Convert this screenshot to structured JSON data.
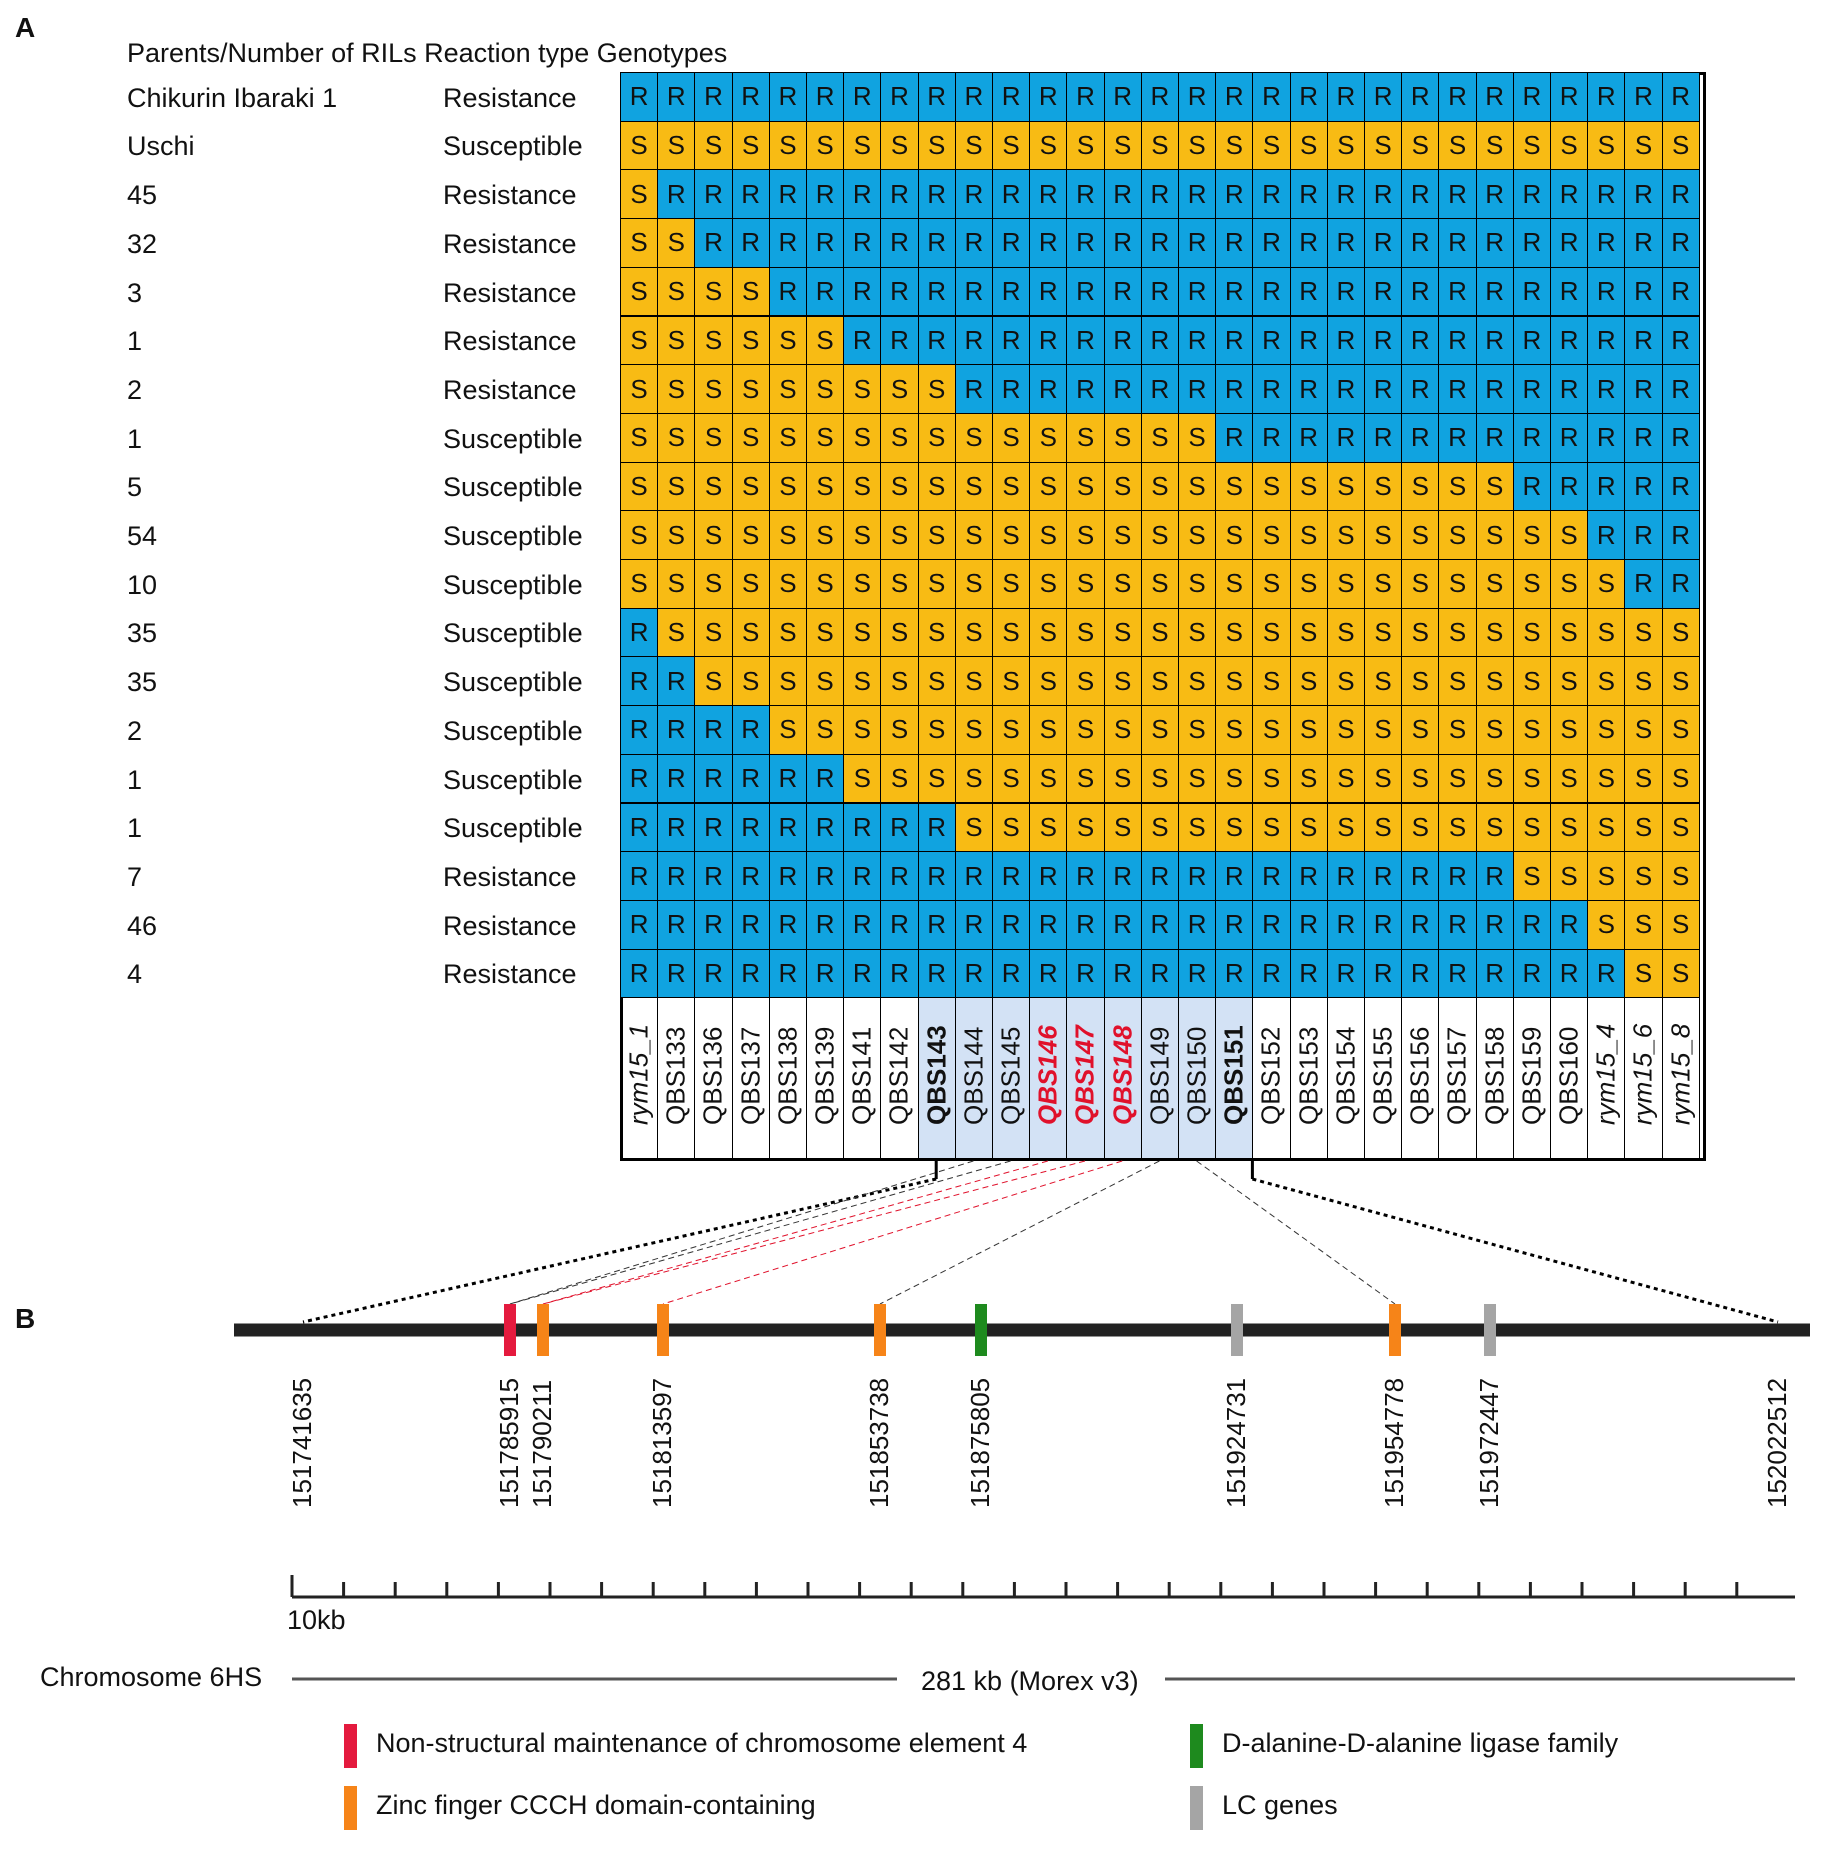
{
  "panel_a": {
    "letter": "A",
    "header": "Parents/Number of RILs Reaction type Genotypes",
    "markers": [
      {
        "name": "rym15_1",
        "style": "ital",
        "hl": false
      },
      {
        "name": "QBS133",
        "style": "",
        "hl": false
      },
      {
        "name": "QBS136",
        "style": "",
        "hl": false
      },
      {
        "name": "QBS137",
        "style": "",
        "hl": false
      },
      {
        "name": "QBS138",
        "style": "",
        "hl": false
      },
      {
        "name": "QBS139",
        "style": "",
        "hl": false
      },
      {
        "name": "QBS141",
        "style": "",
        "hl": false
      },
      {
        "name": "QBS142",
        "style": "",
        "hl": false
      },
      {
        "name": "QBS143",
        "style": "bold",
        "hl": true
      },
      {
        "name": "QBS144",
        "style": "",
        "hl": true
      },
      {
        "name": "QBS145",
        "style": "",
        "hl": true
      },
      {
        "name": "QBS146",
        "style": "red",
        "hl": true
      },
      {
        "name": "QBS147",
        "style": "red",
        "hl": true
      },
      {
        "name": "QBS148",
        "style": "red",
        "hl": true
      },
      {
        "name": "QBS149",
        "style": "",
        "hl": true
      },
      {
        "name": "QBS150",
        "style": "",
        "hl": true
      },
      {
        "name": "QBS151",
        "style": "bold",
        "hl": true
      },
      {
        "name": "QBS152",
        "style": "",
        "hl": false
      },
      {
        "name": "QBS153",
        "style": "",
        "hl": false
      },
      {
        "name": "QBS154",
        "style": "",
        "hl": false
      },
      {
        "name": "QBS155",
        "style": "",
        "hl": false
      },
      {
        "name": "QBS156",
        "style": "",
        "hl": false
      },
      {
        "name": "QBS157",
        "style": "",
        "hl": false
      },
      {
        "name": "QBS158",
        "style": "",
        "hl": false
      },
      {
        "name": "QBS159",
        "style": "",
        "hl": false
      },
      {
        "name": "QBS160",
        "style": "",
        "hl": false
      },
      {
        "name": "rym15_4",
        "style": "ital",
        "hl": false
      },
      {
        "name": "rym15_6",
        "style": "ital",
        "hl": false
      },
      {
        "name": "rym15_8",
        "style": "ital",
        "hl": false
      }
    ],
    "rows": [
      {
        "label": "Chikurin Ibaraki 1",
        "reaction": "Resistance",
        "genotypes": "RRRRRRRRRRRRRRRRRRRRRRRRRRRRR"
      },
      {
        "label": "Uschi",
        "reaction": "Susceptible",
        "genotypes": "SSSSSSSSSSSSSSSSSSSSSSSSSSSSS"
      },
      {
        "label": "45",
        "reaction": "Resistance",
        "genotypes": "SRRRRRRRRRRRRRRRRRRRRRRRRRRRR"
      },
      {
        "label": "32",
        "reaction": "Resistance",
        "genotypes": "SSRRRRRRRRRRRRRRRRRRRRRRRRRRR"
      },
      {
        "label": "3",
        "reaction": "Resistance",
        "genotypes": "SSSSRRRRRRRRRRRRRRRRRRRRRRRRR"
      },
      {
        "label": "1",
        "reaction": "Resistance",
        "genotypes": "SSSSSSRRRRRRRRRRRRRRRRRRRRRRR"
      },
      {
        "label": "2",
        "reaction": "Resistance",
        "genotypes": "SSSSSSSSSRRRRRRRRRRRRRRRRRRRR"
      },
      {
        "label": "1",
        "reaction": "Susceptible",
        "genotypes": "SSSSSSSSSSSSSSSSRRRRRRRRRRRRR"
      },
      {
        "label": "5",
        "reaction": "Susceptible",
        "genotypes": "SSSSSSSSSSSSSSSSSSSSSSSSRRRRR"
      },
      {
        "label": "54",
        "reaction": "Susceptible",
        "genotypes": "SSSSSSSSSSSSSSSSSSSSSSSSSSRRR"
      },
      {
        "label": "10",
        "reaction": "Susceptible",
        "genotypes": "SSSSSSSSSSSSSSSSSSSSSSSSSSSRR"
      },
      {
        "label": "35",
        "reaction": "Susceptible",
        "genotypes": "RSSSSSSSSSSSSSSSSSSSSSSSSSSSS"
      },
      {
        "label": "35",
        "reaction": "Susceptible",
        "genotypes": "RRSSSSSSSSSSSSSSSSSSSSSSSSSSS"
      },
      {
        "label": "2",
        "reaction": "Susceptible",
        "genotypes": "RRRRSSSSSSSSSSSSSSSSSSSSSSSSS"
      },
      {
        "label": "1",
        "reaction": "Susceptible",
        "genotypes": "RRRRRRSSSSSSSSSSSSSSSSSSSSSSS"
      },
      {
        "label": "1",
        "reaction": "Susceptible",
        "genotypes": "RRRRRRRRRSSSSSSSSSSSSSSSSSSSS"
      },
      {
        "label": "7",
        "reaction": "Resistance",
        "genotypes": "RRRRRRRRRRRRRRRRRRRRRRRRSSSSS"
      },
      {
        "label": "46",
        "reaction": "Resistance",
        "genotypes": "RRRRRRRRRRRRRRRRRRRRRRRRRRSSS"
      },
      {
        "label": "4",
        "reaction": "Resistance",
        "genotypes": "RRRRRRRRRRRRRRRRRRRRRRRRRRRSS"
      }
    ]
  },
  "panel_b": {
    "letter": "B",
    "positions": [
      {
        "label": "151741635",
        "color": "none"
      },
      {
        "label": "151785915",
        "color": "#e41a3e"
      },
      {
        "label": "151790211",
        "color": "#f68418"
      },
      {
        "label": "151813597",
        "color": "#f68418"
      },
      {
        "label": "151853738",
        "color": "#f68418"
      },
      {
        "label": "151875805",
        "color": "#1e8a1e"
      },
      {
        "label": "151924731",
        "color": "#a5a5a5"
      },
      {
        "label": "151954778",
        "color": "#f68418"
      },
      {
        "label": "151972447",
        "color": "#a5a5a5"
      },
      {
        "label": "152022512",
        "color": "none"
      }
    ],
    "scale_label": "10kb",
    "chromosome_label": "Chromosome 6HS",
    "span_label": "281 kb (Morex v3)"
  },
  "legend": [
    {
      "text": "Non-structural maintenance of chromosome element 4",
      "color": "#e41a3e"
    },
    {
      "text": "D-alanine-D-alanine ligase family",
      "color": "#1e8a1e"
    },
    {
      "text": "Zinc finger CCCH domain-containing",
      "color": "#f68418"
    },
    {
      "text": "LC genes",
      "color": "#a5a5a5"
    }
  ]
}
